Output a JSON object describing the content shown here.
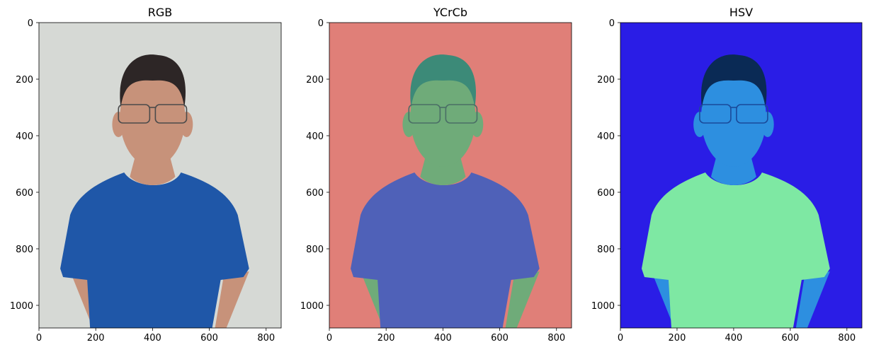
{
  "chart_data": [
    {
      "type": "image",
      "title": "RGB",
      "xlim": [
        0,
        853
      ],
      "ylim": [
        1080,
        0
      ],
      "xticks": [
        0,
        200,
        400,
        600,
        800
      ],
      "yticks": [
        0,
        200,
        400,
        600,
        800,
        1000
      ],
      "colors": {
        "background": "#d6d9d5",
        "shirt": "#1f57a8",
        "skin": "#c7927a",
        "hair": "#2d2626",
        "glasses": "#4b4b4b"
      }
    },
    {
      "type": "image",
      "title": "YCrCb",
      "xlim": [
        0,
        853
      ],
      "ylim": [
        1080,
        0
      ],
      "xticks": [
        0,
        200,
        400,
        600,
        800
      ],
      "yticks": [
        0,
        200,
        400,
        600,
        800,
        1000
      ],
      "colors": {
        "background": "#e07f78",
        "shirt": "#4f61b8",
        "skin": "#6fab79",
        "hair": "#3c8a78",
        "glasses": "#4a6e66"
      }
    },
    {
      "type": "image",
      "title": "HSV",
      "xlim": [
        0,
        853
      ],
      "ylim": [
        1080,
        0
      ],
      "xticks": [
        0,
        200,
        400,
        600,
        800
      ],
      "yticks": [
        0,
        200,
        400,
        600,
        800,
        1000
      ],
      "colors": {
        "background": "#2a1de6",
        "shirt": "#7ee8a3",
        "skin": "#2d8fe0",
        "hair": "#0a2a55",
        "glasses": "#1a4a9a"
      }
    }
  ]
}
